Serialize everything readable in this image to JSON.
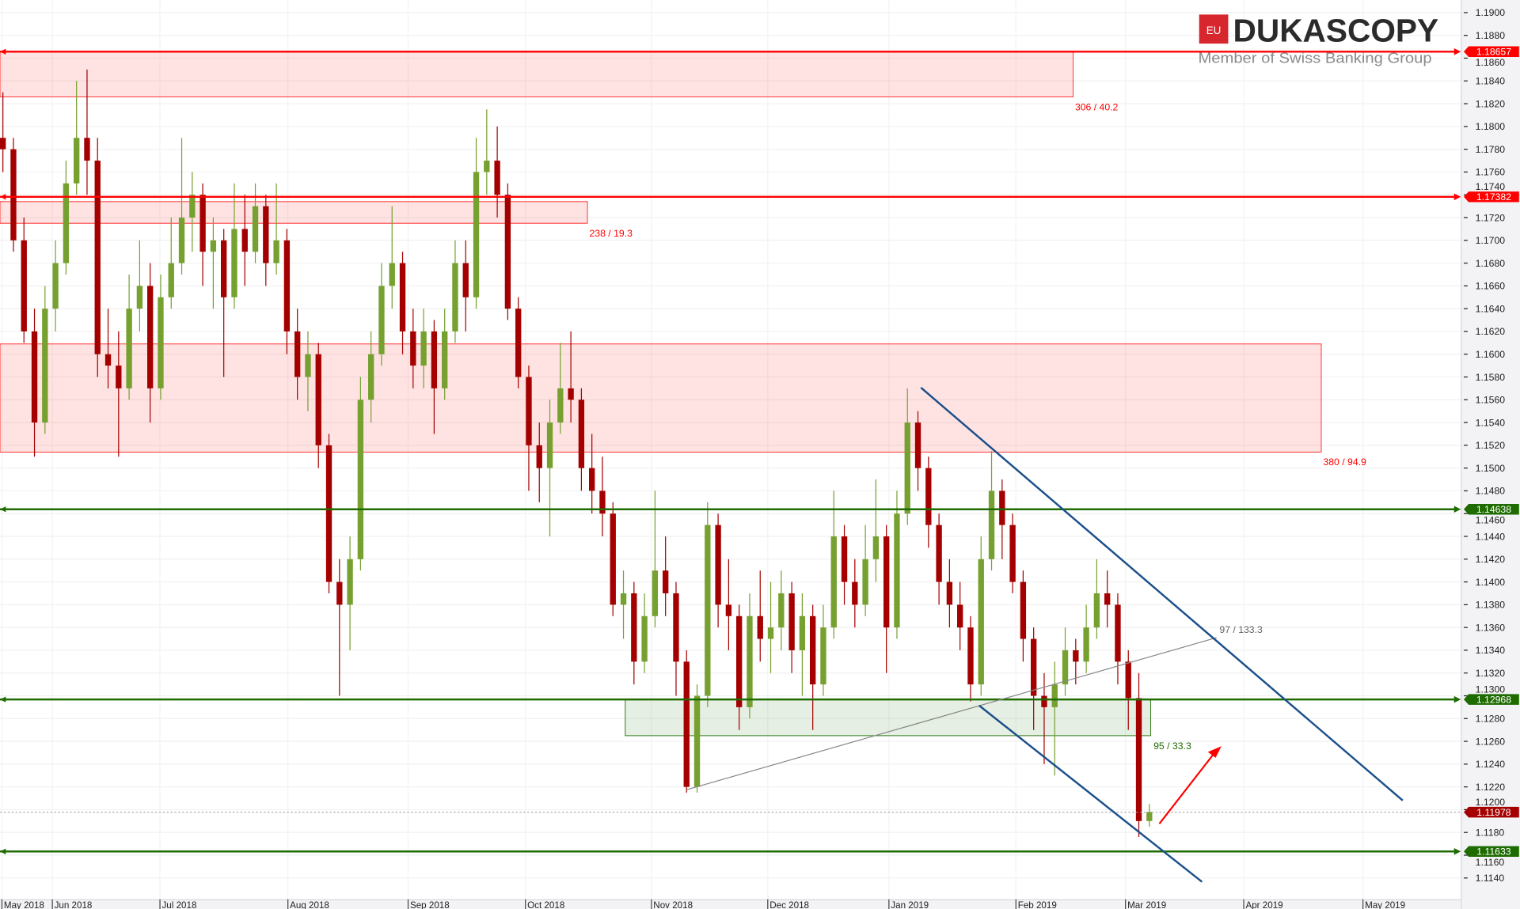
{
  "logo": {
    "name": "DUKASCOPY",
    "badge": "EU",
    "tagline": "Member of Swiss Banking Group",
    "color": "#d7262e"
  },
  "chart_data": {
    "type": "candlestick",
    "instrument_timeframe": "daily",
    "ylim": [
      1.113,
      1.1905
    ],
    "y_ticks": [
      "1.1140",
      "1.1160",
      "1.1180",
      "1.1200",
      "1.1220",
      "1.1240",
      "1.1260",
      "1.1280",
      "1.1300",
      "1.1320",
      "1.1340",
      "1.1360",
      "1.1380",
      "1.1400",
      "1.1420",
      "1.1440",
      "1.1460",
      "1.1480",
      "1.1500",
      "1.1520",
      "1.1540",
      "1.1560",
      "1.1580",
      "1.1600",
      "1.1620",
      "1.1640",
      "1.1660",
      "1.1680",
      "1.1700",
      "1.1720",
      "1.1740",
      "1.1760",
      "1.1780",
      "1.1800",
      "1.1820",
      "1.1840",
      "1.1860",
      "1.1880",
      "1.1900"
    ],
    "x_ticks": [
      "May 2018",
      "Jun 2018",
      "Jul 2018",
      "Aug 2018",
      "Sep 2018",
      "Oct 2018",
      "Nov 2018",
      "Dec 2018",
      "Jan 2019",
      "Feb 2019",
      "Mar 2019",
      "Apr 2019",
      "May 2019"
    ],
    "colors": {
      "up": "#76a130",
      "down": "#a50000",
      "resistance": "#ff0000",
      "support": "#1e6b00",
      "channel": "#1a4f8b"
    },
    "candles": [
      [
        1.179,
        1.183,
        1.176,
        1.178
      ],
      [
        1.178,
        1.179,
        1.169,
        1.17
      ],
      [
        1.17,
        1.172,
        1.161,
        1.162
      ],
      [
        1.162,
        1.164,
        1.151,
        1.154
      ],
      [
        1.154,
        1.166,
        1.153,
        1.164
      ],
      [
        1.164,
        1.17,
        1.162,
        1.168
      ],
      [
        1.168,
        1.177,
        1.167,
        1.175
      ],
      [
        1.175,
        1.184,
        1.174,
        1.179
      ],
      [
        1.179,
        1.185,
        1.174,
        1.177
      ],
      [
        1.177,
        1.179,
        1.158,
        1.16
      ],
      [
        1.16,
        1.164,
        1.157,
        1.159
      ],
      [
        1.159,
        1.162,
        1.151,
        1.157
      ],
      [
        1.157,
        1.167,
        1.156,
        1.164
      ],
      [
        1.164,
        1.17,
        1.162,
        1.166
      ],
      [
        1.166,
        1.168,
        1.154,
        1.157
      ],
      [
        1.157,
        1.167,
        1.156,
        1.165
      ],
      [
        1.165,
        1.172,
        1.164,
        1.168
      ],
      [
        1.168,
        1.179,
        1.167,
        1.172
      ],
      [
        1.172,
        1.176,
        1.169,
        1.174
      ],
      [
        1.174,
        1.175,
        1.166,
        1.169
      ],
      [
        1.169,
        1.172,
        1.164,
        1.17
      ],
      [
        1.17,
        1.171,
        1.158,
        1.165
      ],
      [
        1.165,
        1.175,
        1.164,
        1.171
      ],
      [
        1.171,
        1.174,
        1.166,
        1.169
      ],
      [
        1.169,
        1.175,
        1.168,
        1.173
      ],
      [
        1.173,
        1.174,
        1.166,
        1.168
      ],
      [
        1.168,
        1.175,
        1.167,
        1.17
      ],
      [
        1.17,
        1.171,
        1.16,
        1.162
      ],
      [
        1.162,
        1.164,
        1.156,
        1.158
      ],
      [
        1.158,
        1.162,
        1.155,
        1.16
      ],
      [
        1.16,
        1.161,
        1.15,
        1.152
      ],
      [
        1.152,
        1.153,
        1.139,
        1.14
      ],
      [
        1.14,
        1.142,
        1.13,
        1.138
      ],
      [
        1.138,
        1.144,
        1.134,
        1.142
      ],
      [
        1.142,
        1.158,
        1.141,
        1.156
      ],
      [
        1.156,
        1.162,
        1.154,
        1.16
      ],
      [
        1.16,
        1.168,
        1.159,
        1.166
      ],
      [
        1.166,
        1.173,
        1.164,
        1.168
      ],
      [
        1.168,
        1.169,
        1.16,
        1.162
      ],
      [
        1.162,
        1.164,
        1.157,
        1.159
      ],
      [
        1.159,
        1.164,
        1.157,
        1.162
      ],
      [
        1.162,
        1.163,
        1.153,
        1.157
      ],
      [
        1.157,
        1.164,
        1.156,
        1.162
      ],
      [
        1.162,
        1.17,
        1.161,
        1.168
      ],
      [
        1.168,
        1.17,
        1.162,
        1.165
      ],
      [
        1.165,
        1.179,
        1.164,
        1.176
      ],
      [
        1.176,
        1.1815,
        1.174,
        1.177
      ],
      [
        1.177,
        1.18,
        1.172,
        1.174
      ],
      [
        1.174,
        1.175,
        1.163,
        1.164
      ],
      [
        1.164,
        1.165,
        1.157,
        1.158
      ],
      [
        1.158,
        1.159,
        1.148,
        1.152
      ],
      [
        1.152,
        1.154,
        1.147,
        1.15
      ],
      [
        1.15,
        1.156,
        1.144,
        1.154
      ],
      [
        1.154,
        1.161,
        1.153,
        1.157
      ],
      [
        1.157,
        1.162,
        1.154,
        1.156
      ],
      [
        1.156,
        1.157,
        1.148,
        1.15
      ],
      [
        1.15,
        1.153,
        1.146,
        1.148
      ],
      [
        1.148,
        1.151,
        1.144,
        1.146
      ],
      [
        1.146,
        1.147,
        1.137,
        1.138
      ],
      [
        1.138,
        1.141,
        1.135,
        1.139
      ],
      [
        1.139,
        1.14,
        1.131,
        1.133
      ],
      [
        1.133,
        1.139,
        1.132,
        1.137
      ],
      [
        1.137,
        1.148,
        1.136,
        1.141
      ],
      [
        1.141,
        1.144,
        1.137,
        1.139
      ],
      [
        1.139,
        1.14,
        1.13,
        1.133
      ],
      [
        1.133,
        1.134,
        1.1215,
        1.122
      ],
      [
        1.122,
        1.131,
        1.1215,
        1.13
      ],
      [
        1.13,
        1.147,
        1.129,
        1.145
      ],
      [
        1.145,
        1.146,
        1.136,
        1.138
      ],
      [
        1.138,
        1.142,
        1.134,
        1.137
      ],
      [
        1.137,
        1.138,
        1.127,
        1.129
      ],
      [
        1.129,
        1.139,
        1.128,
        1.137
      ],
      [
        1.137,
        1.141,
        1.133,
        1.135
      ],
      [
        1.135,
        1.14,
        1.132,
        1.136
      ],
      [
        1.136,
        1.141,
        1.134,
        1.139
      ],
      [
        1.139,
        1.14,
        1.132,
        1.134
      ],
      [
        1.134,
        1.139,
        1.13,
        1.137
      ],
      [
        1.137,
        1.138,
        1.127,
        1.131
      ],
      [
        1.131,
        1.138,
        1.13,
        1.136
      ],
      [
        1.136,
        1.148,
        1.135,
        1.144
      ],
      [
        1.144,
        1.145,
        1.138,
        1.14
      ],
      [
        1.14,
        1.142,
        1.136,
        1.138
      ],
      [
        1.138,
        1.145,
        1.137,
        1.142
      ],
      [
        1.142,
        1.149,
        1.14,
        1.144
      ],
      [
        1.144,
        1.145,
        1.132,
        1.136
      ],
      [
        1.136,
        1.148,
        1.135,
        1.146
      ],
      [
        1.146,
        1.157,
        1.145,
        1.154
      ],
      [
        1.154,
        1.155,
        1.148,
        1.15
      ],
      [
        1.15,
        1.151,
        1.143,
        1.145
      ],
      [
        1.145,
        1.146,
        1.138,
        1.14
      ],
      [
        1.14,
        1.142,
        1.136,
        1.138
      ],
      [
        1.138,
        1.14,
        1.134,
        1.136
      ],
      [
        1.136,
        1.137,
        1.1295,
        1.131
      ],
      [
        1.131,
        1.144,
        1.13,
        1.142
      ],
      [
        1.142,
        1.1515,
        1.141,
        1.148
      ],
      [
        1.148,
        1.149,
        1.142,
        1.145
      ],
      [
        1.145,
        1.146,
        1.139,
        1.14
      ],
      [
        1.14,
        1.141,
        1.133,
        1.135
      ],
      [
        1.135,
        1.136,
        1.127,
        1.13
      ],
      [
        1.13,
        1.132,
        1.124,
        1.129
      ],
      [
        1.129,
        1.133,
        1.123,
        1.131
      ],
      [
        1.131,
        1.136,
        1.13,
        1.134
      ],
      [
        1.134,
        1.135,
        1.131,
        1.133
      ],
      [
        1.133,
        1.138,
        1.132,
        1.136
      ],
      [
        1.136,
        1.142,
        1.135,
        1.139
      ],
      [
        1.139,
        1.141,
        1.136,
        1.138
      ],
      [
        1.138,
        1.139,
        1.131,
        1.133
      ],
      [
        1.133,
        1.134,
        1.127,
        1.1298
      ],
      [
        1.1298,
        1.132,
        1.1176,
        1.119
      ],
      [
        1.119,
        1.1205,
        1.1185,
        1.1198
      ]
    ],
    "levels": [
      {
        "price": 1.18657,
        "label": "1.18657",
        "kind": "resistance"
      },
      {
        "price": 1.17382,
        "label": "1.17382",
        "kind": "resistance"
      },
      {
        "price": 1.14638,
        "label": "1.14638",
        "kind": "support"
      },
      {
        "price": 1.12968,
        "label": "1.12968",
        "kind": "support"
      },
      {
        "price": 1.11633,
        "label": "1.11633",
        "kind": "support"
      }
    ],
    "current_price": {
      "price": 1.11978,
      "label": "1.11978"
    },
    "zones": [
      {
        "top": 1.1866,
        "bottom": 1.1826,
        "label": "306 / 40.2",
        "kind": "resistance"
      },
      {
        "top": 1.1734,
        "bottom": 1.1715,
        "label": "238 / 19.3",
        "kind": "resistance"
      },
      {
        "top": 1.1609,
        "bottom": 1.1514,
        "label": "380 / 94.9",
        "kind": "resistance"
      },
      {
        "top": 1.1297,
        "bottom": 1.1265,
        "label": "95 / 33.3",
        "kind": "support"
      }
    ],
    "trendline_label": "97 / 133.3"
  }
}
